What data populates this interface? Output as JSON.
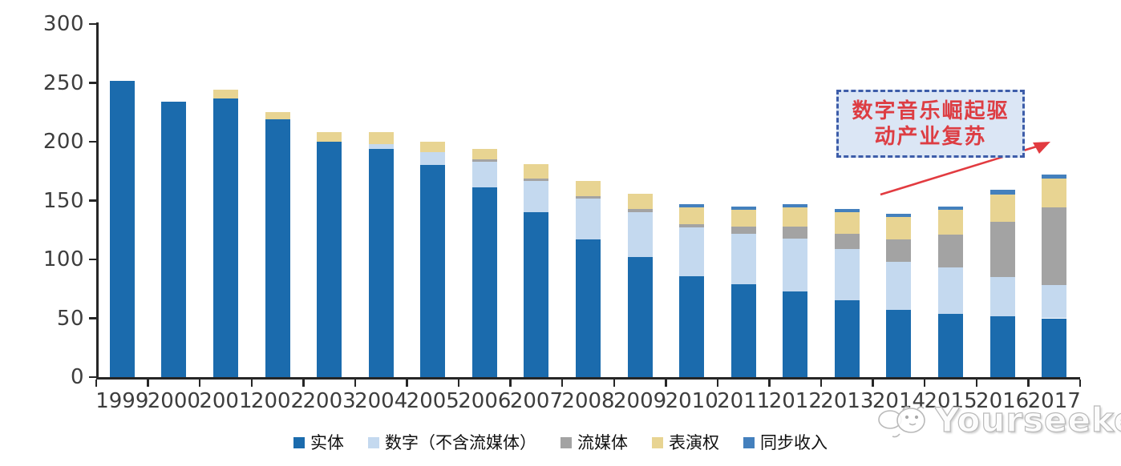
{
  "chart_data": {
    "type": "bar",
    "stacked": true,
    "title": "",
    "xlabel": "",
    "ylabel": "",
    "categories": [
      "1999",
      "2000",
      "2001",
      "2002",
      "2003",
      "2004",
      "2005",
      "2006",
      "2007",
      "2008",
      "2009",
      "2010",
      "2011",
      "2012",
      "2013",
      "2014",
      "2015",
      "2016",
      "2017"
    ],
    "series": [
      {
        "name": "实体",
        "color": "#1b6bad",
        "values": [
          252,
          234,
          237,
          219,
          200,
          194,
          180,
          161,
          140,
          117,
          102,
          86,
          79,
          73,
          65,
          57,
          54,
          52,
          50
        ]
      },
      {
        "name": "数字（不含流媒体）",
        "color": "#c4d9ef",
        "values": [
          0,
          0,
          0,
          0,
          0,
          4,
          11,
          22,
          27,
          35,
          38,
          41,
          43,
          45,
          44,
          41,
          39,
          33,
          28
        ]
      },
      {
        "name": "流媒体",
        "color": "#a3a3a3",
        "values": [
          0,
          0,
          0,
          0,
          0,
          0,
          0,
          2,
          2,
          2,
          3,
          3,
          6,
          10,
          13,
          19,
          28,
          47,
          66
        ]
      },
      {
        "name": "表演权",
        "color": "#e8d492",
        "values": [
          0,
          0,
          7,
          6,
          8,
          10,
          9,
          9,
          12,
          13,
          13,
          14,
          14,
          16,
          18,
          19,
          21,
          23,
          25
        ]
      },
      {
        "name": "同步收入",
        "color": "#4480bd",
        "values": [
          0,
          0,
          0,
          0,
          0,
          0,
          0,
          0,
          0,
          0,
          0,
          3,
          3,
          3,
          3,
          3,
          3,
          4,
          3
        ]
      }
    ],
    "ylim": [
      0,
      300
    ],
    "yticks": [
      "0",
      "50",
      "100",
      "150",
      "200",
      "250",
      "300"
    ],
    "grid": false,
    "legend_position": "bottom"
  },
  "annotation": {
    "line1": "数字音乐崛起驱",
    "line2": "动产业复苏",
    "text_color": "#dd3d43",
    "border_color": "#3d5da9",
    "fill_color": "#dbe6f5",
    "arrow_color": "#e23b40"
  },
  "watermark": {
    "text": "Yourseeker"
  }
}
